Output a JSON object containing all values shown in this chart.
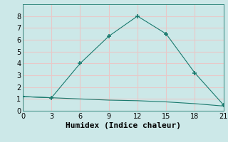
{
  "line1_x": [
    0,
    3,
    6,
    9,
    12,
    15,
    18,
    21
  ],
  "line1_y": [
    1.2,
    1.1,
    4.0,
    6.3,
    8.0,
    6.5,
    3.2,
    0.5
  ],
  "line2_x": [
    0,
    3,
    6,
    9,
    12,
    15,
    18,
    21
  ],
  "line2_y": [
    1.2,
    1.1,
    1.0,
    0.9,
    0.85,
    0.75,
    0.6,
    0.4
  ],
  "line_color": "#1a7a6e",
  "marker": "+",
  "xlabel": "Humidex (Indice chaleur)",
  "xlim": [
    0,
    21
  ],
  "ylim": [
    0,
    9
  ],
  "xticks": [
    0,
    3,
    6,
    9,
    12,
    15,
    18,
    21
  ],
  "yticks": [
    0,
    1,
    2,
    3,
    4,
    5,
    6,
    7,
    8
  ],
  "bg_color": "#cce8e8",
  "grid_color": "#e8c8c8",
  "xlabel_fontsize": 8,
  "tick_fontsize": 7,
  "marker_size": 4,
  "linewidth": 0.8
}
